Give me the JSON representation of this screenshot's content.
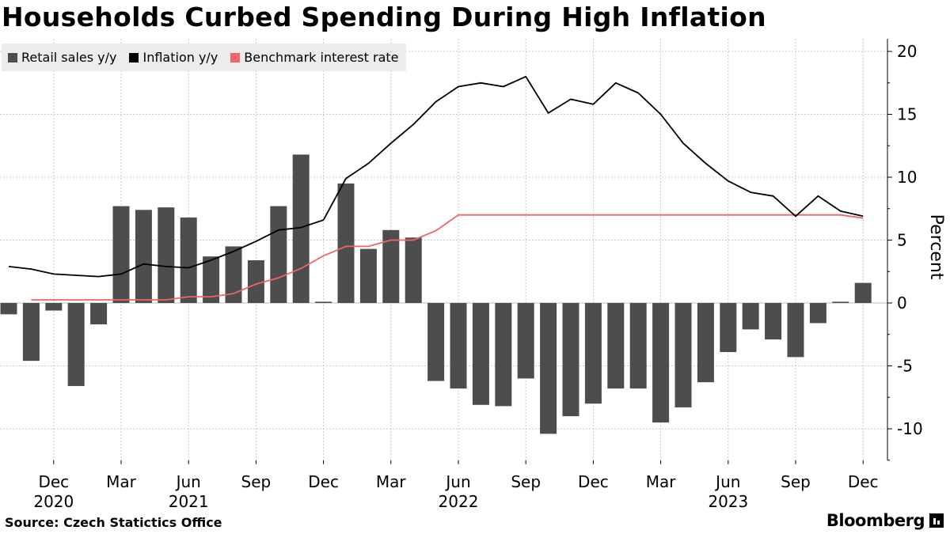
{
  "title": "Households Curbed Spending During High Inflation",
  "source": "Source: Czech Statictics Office",
  "brand": "Bloomberg",
  "colors": {
    "bars": "#4d4d4d",
    "inflation": "#000000",
    "rate": "#f06565",
    "legend_bg": "#ececec"
  },
  "chart_data": {
    "type": "bar",
    "ylabel": "Percent",
    "ylim": [
      -12.5,
      21
    ],
    "yticks": [
      -10,
      -5,
      0,
      5,
      10,
      15,
      20
    ],
    "ytick_labels": [
      "-10",
      "-5",
      "0",
      "5",
      "10",
      "15",
      "20"
    ],
    "legend": [
      "Retail sales y/y",
      "Inflation y/y",
      "Benchmark interest rate"
    ],
    "legend_position": "top-left",
    "categories": [
      "Oct 2020",
      "Nov 2020",
      "Dec 2020",
      "Jan 2021",
      "Feb 2021",
      "Mar 2021",
      "Apr 2021",
      "May 2021",
      "Jun 2021",
      "Jul 2021",
      "Aug 2021",
      "Sep 2021",
      "Oct 2021",
      "Nov 2021",
      "Dec 2021",
      "Jan 2022",
      "Feb 2022",
      "Mar 2022",
      "Apr 2022",
      "May 2022",
      "Jun 2022",
      "Jul 2022",
      "Aug 2022",
      "Sep 2022",
      "Oct 2022",
      "Nov 2022",
      "Dec 2022",
      "Jan 2023",
      "Feb 2023",
      "Mar 2023",
      "Apr 2023",
      "May 2023",
      "Jun 2023",
      "Jul 2023",
      "Aug 2023",
      "Sep 2023",
      "Oct 2023",
      "Nov 2023",
      "Dec 2023"
    ],
    "x_ticks": [
      {
        "index": 2,
        "label": "Dec",
        "year": "2020"
      },
      {
        "index": 5,
        "label": "Mar",
        "year": ""
      },
      {
        "index": 8,
        "label": "Jun",
        "year": "2021"
      },
      {
        "index": 11,
        "label": "Sep",
        "year": ""
      },
      {
        "index": 14,
        "label": "Dec",
        "year": ""
      },
      {
        "index": 17,
        "label": "Mar",
        "year": ""
      },
      {
        "index": 20,
        "label": "Jun",
        "year": "2022"
      },
      {
        "index": 23,
        "label": "Sep",
        "year": ""
      },
      {
        "index": 26,
        "label": "Dec",
        "year": ""
      },
      {
        "index": 29,
        "label": "Mar",
        "year": ""
      },
      {
        "index": 32,
        "label": "Jun",
        "year": "2023"
      },
      {
        "index": 35,
        "label": "Sep",
        "year": ""
      },
      {
        "index": 38,
        "label": "Dec",
        "year": ""
      }
    ],
    "series": [
      {
        "name": "Retail sales y/y",
        "type": "bar",
        "values": [
          -0.9,
          -4.6,
          -0.6,
          -6.6,
          -1.7,
          7.7,
          7.4,
          7.6,
          6.8,
          3.7,
          4.5,
          3.4,
          7.7,
          11.8,
          0.1,
          9.5,
          4.3,
          5.8,
          5.2,
          -6.2,
          -6.8,
          -8.1,
          -8.2,
          -6.0,
          -10.4,
          -9.0,
          -8.0,
          -6.8,
          -6.8,
          -9.5,
          -8.3,
          -6.3,
          -3.9,
          -2.1,
          -2.9,
          -4.3,
          -1.6,
          0.1,
          1.6
        ]
      },
      {
        "name": "Inflation y/y",
        "type": "line",
        "values": [
          2.9,
          2.7,
          2.3,
          2.2,
          2.1,
          2.3,
          3.1,
          2.9,
          2.8,
          3.4,
          4.1,
          4.9,
          5.8,
          6.0,
          6.6,
          9.9,
          11.1,
          12.7,
          14.2,
          16.0,
          17.2,
          17.5,
          17.2,
          18.0,
          15.1,
          16.2,
          15.8,
          17.5,
          16.7,
          15.0,
          12.7,
          11.1,
          9.7,
          8.8,
          8.5,
          6.9,
          8.5,
          7.3,
          6.9
        ]
      },
      {
        "name": "Benchmark interest rate",
        "type": "line",
        "values": [
          null,
          0.25,
          0.25,
          0.25,
          0.25,
          0.25,
          0.25,
          0.25,
          0.5,
          0.5,
          0.75,
          1.5,
          2.0,
          2.75,
          3.75,
          4.5,
          4.5,
          5.0,
          5.0,
          5.75,
          7.0,
          7.0,
          7.0,
          7.0,
          7.0,
          7.0,
          7.0,
          7.0,
          7.0,
          7.0,
          7.0,
          7.0,
          7.0,
          7.0,
          7.0,
          7.0,
          7.0,
          7.0,
          6.75
        ]
      }
    ]
  }
}
